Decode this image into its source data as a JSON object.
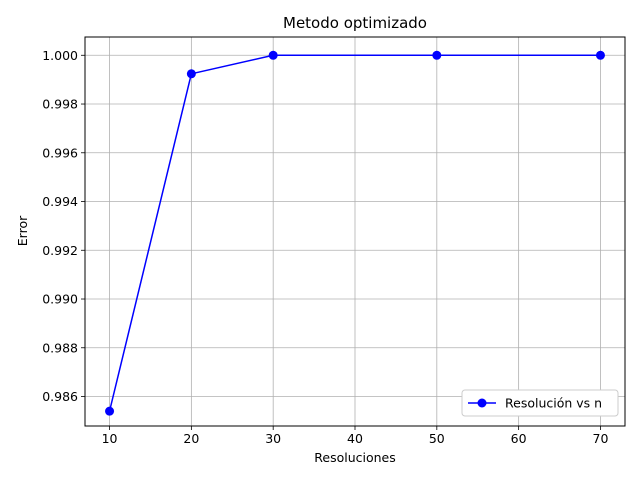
{
  "chart_data": {
    "type": "line",
    "title": "Metodo optimizado",
    "xlabel": "Resoluciones",
    "ylabel": "Error",
    "x": [
      10,
      20,
      30,
      50,
      70
    ],
    "series": [
      {
        "name": "Resolución vs n",
        "values": [
          0.9854,
          0.99924,
          1.0,
          1.0,
          1.0
        ],
        "color": "#0000ff",
        "marker": "circle"
      }
    ],
    "xlim": [
      7,
      73
    ],
    "ylim": [
      0.98479,
      1.00075
    ],
    "xticks": [
      10,
      20,
      30,
      40,
      50,
      60,
      70
    ],
    "xtick_labels": [
      "10",
      "20",
      "30",
      "40",
      "50",
      "60",
      "70"
    ],
    "yticks": [
      0.986,
      0.988,
      0.99,
      0.992,
      0.994,
      0.996,
      0.998,
      1.0
    ],
    "ytick_labels": [
      "0.986",
      "0.988",
      "0.990",
      "0.992",
      "0.994",
      "0.996",
      "0.998",
      "1.000"
    ],
    "grid": true,
    "legend_position": "lower-right"
  }
}
